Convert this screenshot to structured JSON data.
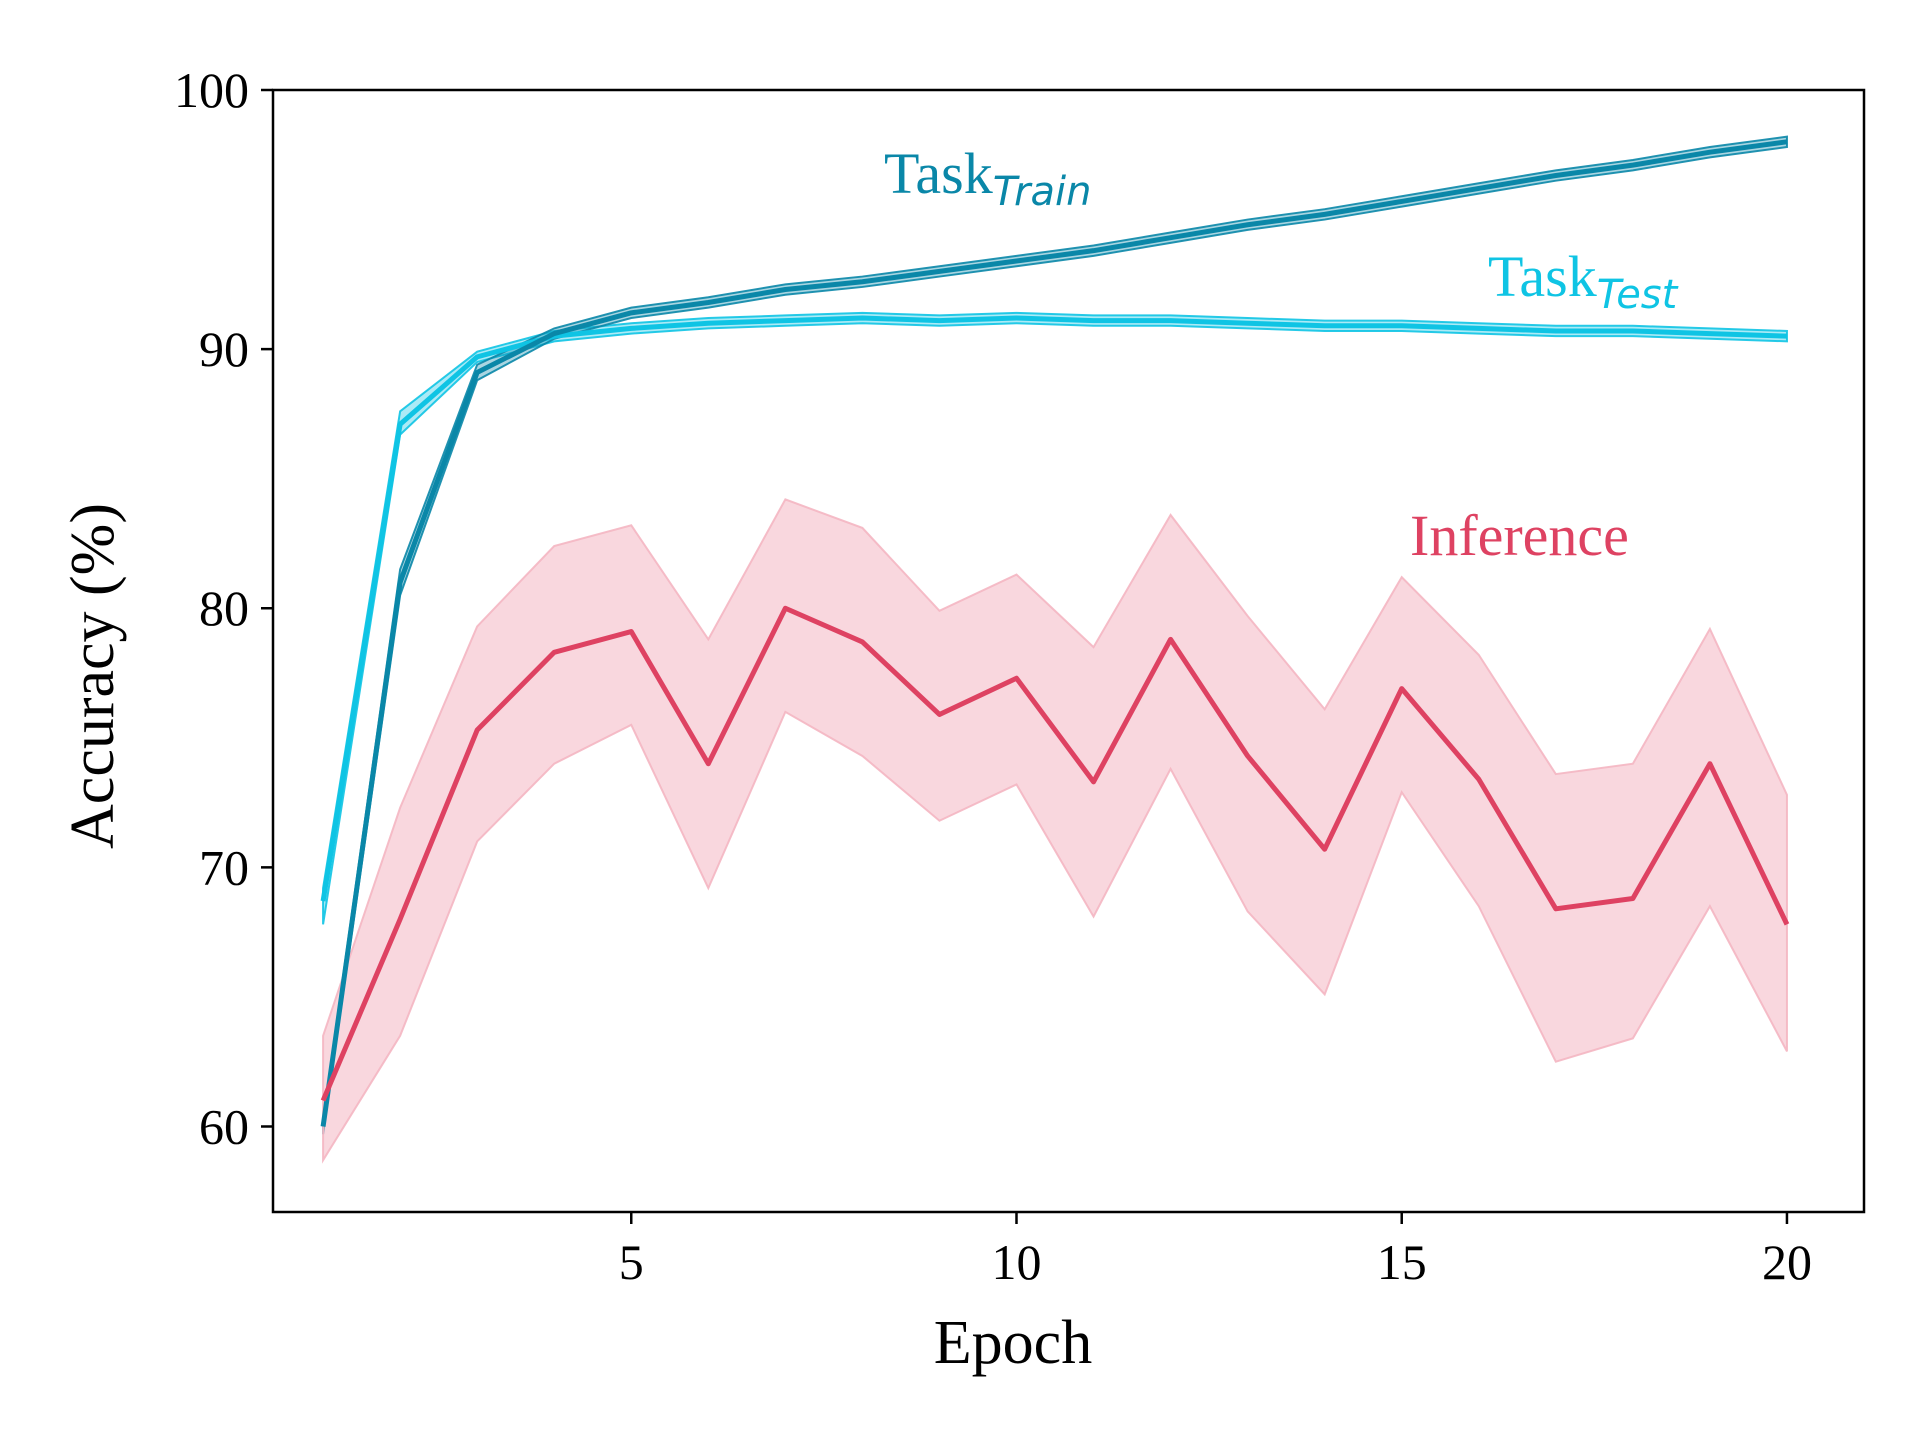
{
  "chart_data": {
    "type": "line",
    "xlabel": "Epoch",
    "ylabel": "Accuracy (%)",
    "xlim": [
      0.35,
      21
    ],
    "ylim": [
      56.7,
      100
    ],
    "xticks": [
      5,
      10,
      15,
      20
    ],
    "yticks": [
      60,
      70,
      80,
      90,
      100
    ],
    "grid": false,
    "x": [
      1,
      2,
      3,
      4,
      5,
      6,
      7,
      8,
      9,
      10,
      11,
      12,
      13,
      14,
      15,
      16,
      17,
      18,
      19,
      20
    ],
    "series": [
      {
        "name": "Task",
        "name_sub": "Train",
        "color": "#0a87a8",
        "values": [
          60.0,
          81.0,
          89.1,
          90.6,
          91.4,
          91.8,
          92.3,
          92.6,
          93.0,
          93.4,
          93.8,
          94.3,
          94.8,
          95.2,
          95.7,
          96.2,
          96.7,
          97.1,
          97.6,
          98.0
        ],
        "lower": [
          59.7,
          80.5,
          88.8,
          90.4,
          91.2,
          91.6,
          92.1,
          92.4,
          92.8,
          93.2,
          93.6,
          94.1,
          94.6,
          95.0,
          95.5,
          96.0,
          96.5,
          96.9,
          97.4,
          97.8
        ],
        "upper": [
          60.3,
          81.5,
          89.4,
          90.8,
          91.6,
          92.0,
          92.5,
          92.8,
          93.2,
          93.6,
          94.0,
          94.5,
          95.0,
          95.4,
          95.9,
          96.4,
          96.9,
          97.3,
          97.8,
          98.2
        ]
      },
      {
        "name": "Task",
        "name_sub": "Test",
        "color": "#0fc4e4",
        "values": [
          68.7,
          87.1,
          89.7,
          90.5,
          90.8,
          91.0,
          91.1,
          91.2,
          91.1,
          91.2,
          91.1,
          91.1,
          91.0,
          90.9,
          90.9,
          90.8,
          90.7,
          90.7,
          90.6,
          90.5
        ],
        "lower": [
          67.8,
          86.7,
          89.5,
          90.3,
          90.6,
          90.8,
          90.9,
          91.0,
          90.9,
          91.0,
          90.9,
          90.9,
          90.8,
          90.7,
          90.7,
          90.6,
          90.5,
          90.5,
          90.4,
          90.3
        ],
        "upper": [
          69.2,
          87.6,
          89.9,
          90.7,
          91.0,
          91.2,
          91.3,
          91.4,
          91.3,
          91.4,
          91.3,
          91.3,
          91.2,
          91.1,
          91.1,
          91.0,
          90.9,
          90.9,
          90.8,
          90.7
        ]
      },
      {
        "name": "Inference",
        "name_sub": "",
        "color": "#de4262",
        "band_color": "#f4b6c2",
        "values": [
          61.0,
          68.0,
          75.3,
          78.3,
          79.1,
          74.0,
          80.0,
          78.7,
          75.9,
          77.3,
          73.3,
          78.8,
          74.3,
          70.7,
          76.9,
          73.4,
          68.4,
          68.8,
          74.0,
          67.8
        ],
        "lower": [
          58.7,
          63.5,
          71.0,
          74.0,
          75.5,
          69.2,
          76.0,
          74.3,
          71.8,
          73.2,
          68.1,
          73.8,
          68.3,
          65.1,
          72.9,
          68.5,
          62.5,
          63.4,
          68.5,
          62.9
        ],
        "upper": [
          63.5,
          72.3,
          79.3,
          82.4,
          83.2,
          78.8,
          84.2,
          83.1,
          79.9,
          81.3,
          78.5,
          83.6,
          79.7,
          76.1,
          81.2,
          78.2,
          73.6,
          74.0,
          79.2,
          72.8
        ]
      }
    ]
  }
}
